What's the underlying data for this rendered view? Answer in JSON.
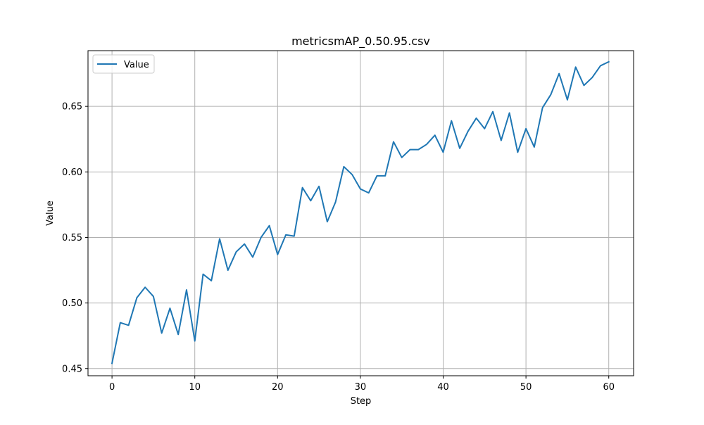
{
  "chart_data": {
    "type": "line",
    "title": "metricsmAP_0.50.95.csv",
    "xlabel": "Step",
    "ylabel": "Value",
    "xlim": [
      -2.9,
      63.0
    ],
    "ylim": [
      0.4445,
      0.6925
    ],
    "xticks": [
      0,
      10,
      20,
      30,
      40,
      50,
      60
    ],
    "yticks": [
      0.45,
      0.5,
      0.55,
      0.6,
      0.65
    ],
    "ytick_labels": [
      "0.45",
      "0.50",
      "0.55",
      "0.60",
      "0.65"
    ],
    "grid": true,
    "legend_position": "top-left",
    "series": [
      {
        "name": "Value",
        "color": "#1f77b4",
        "x": [
          0,
          1,
          2,
          3,
          4,
          5,
          6,
          7,
          8,
          9,
          10,
          11,
          12,
          13,
          14,
          15,
          16,
          17,
          18,
          19,
          20,
          21,
          22,
          23,
          24,
          25,
          26,
          27,
          28,
          29,
          30,
          31,
          32,
          33,
          34,
          35,
          36,
          37,
          38,
          39,
          40,
          41,
          42,
          43,
          44,
          45,
          46,
          47,
          48,
          49,
          50,
          51,
          52,
          53,
          54,
          55,
          56,
          57,
          58,
          59,
          60
        ],
        "values": [
          0.454,
          0.485,
          0.483,
          0.504,
          0.512,
          0.505,
          0.477,
          0.496,
          0.476,
          0.51,
          0.471,
          0.522,
          0.517,
          0.549,
          0.525,
          0.539,
          0.545,
          0.535,
          0.55,
          0.559,
          0.537,
          0.552,
          0.551,
          0.588,
          0.578,
          0.589,
          0.562,
          0.577,
          0.604,
          0.598,
          0.587,
          0.584,
          0.597,
          0.597,
          0.623,
          0.611,
          0.617,
          0.617,
          0.621,
          0.628,
          0.615,
          0.639,
          0.618,
          0.631,
          0.641,
          0.633,
          0.646,
          0.624,
          0.645,
          0.615,
          0.633,
          0.619,
          0.649,
          0.659,
          0.675,
          0.655,
          0.68,
          0.666,
          0.672,
          0.681,
          0.684
        ]
      }
    ]
  }
}
